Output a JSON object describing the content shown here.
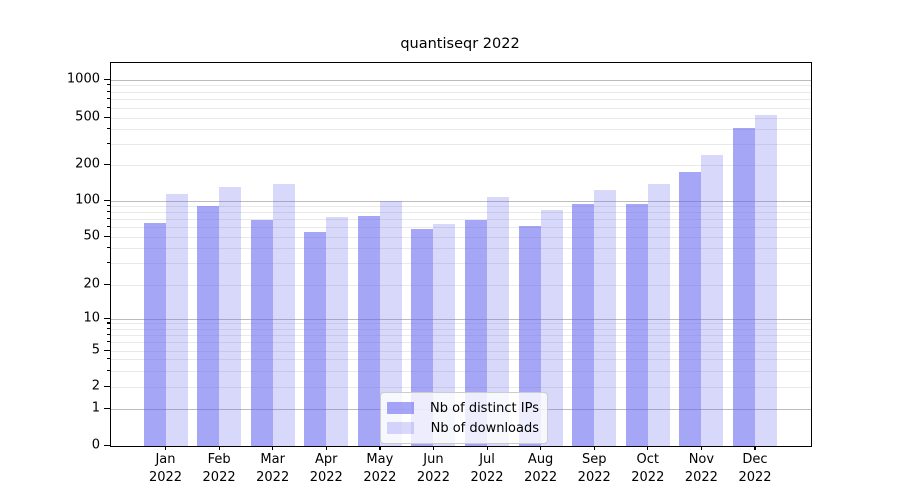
{
  "title": "quantiseqr 2022",
  "chart_data": {
    "type": "bar",
    "title": "quantiseqr 2022",
    "categories": [
      "Jan 2022",
      "Feb 2022",
      "Mar 2022",
      "Apr 2022",
      "May 2022",
      "Jun 2022",
      "Jul 2022",
      "Aug 2022",
      "Sep 2022",
      "Oct 2022",
      "Nov 2022",
      "Dec 2022"
    ],
    "series": [
      {
        "key": "distinct-ips",
        "name": "Nb of distinct IPs",
        "fill": "rgba(99,99,241,0.57)",
        "values": [
          65,
          90,
          70,
          55,
          75,
          58,
          70,
          62,
          95,
          95,
          175,
          410
        ]
      },
      {
        "key": "downloads",
        "name": "Nb of downloads",
        "fill": "rgba(99,99,241,0.25)",
        "values": [
          115,
          130,
          138,
          73,
          100,
          64,
          108,
          84,
          124,
          139,
          245,
          530
        ]
      }
    ],
    "y_ticks": [
      0,
      1,
      2,
      5,
      10,
      20,
      50,
      100,
      200,
      500,
      1000
    ],
    "y_scale": "symlog",
    "ylim": [
      0,
      1300
    ],
    "grid": "horizontal major and minor",
    "legend_position": "lower center",
    "colors": {
      "bar_dark": "#a6a6f7",
      "bar_light": "#d8d8fc",
      "grid_major": "#bcbcbc",
      "grid_minor": "#e9e9e9"
    }
  }
}
